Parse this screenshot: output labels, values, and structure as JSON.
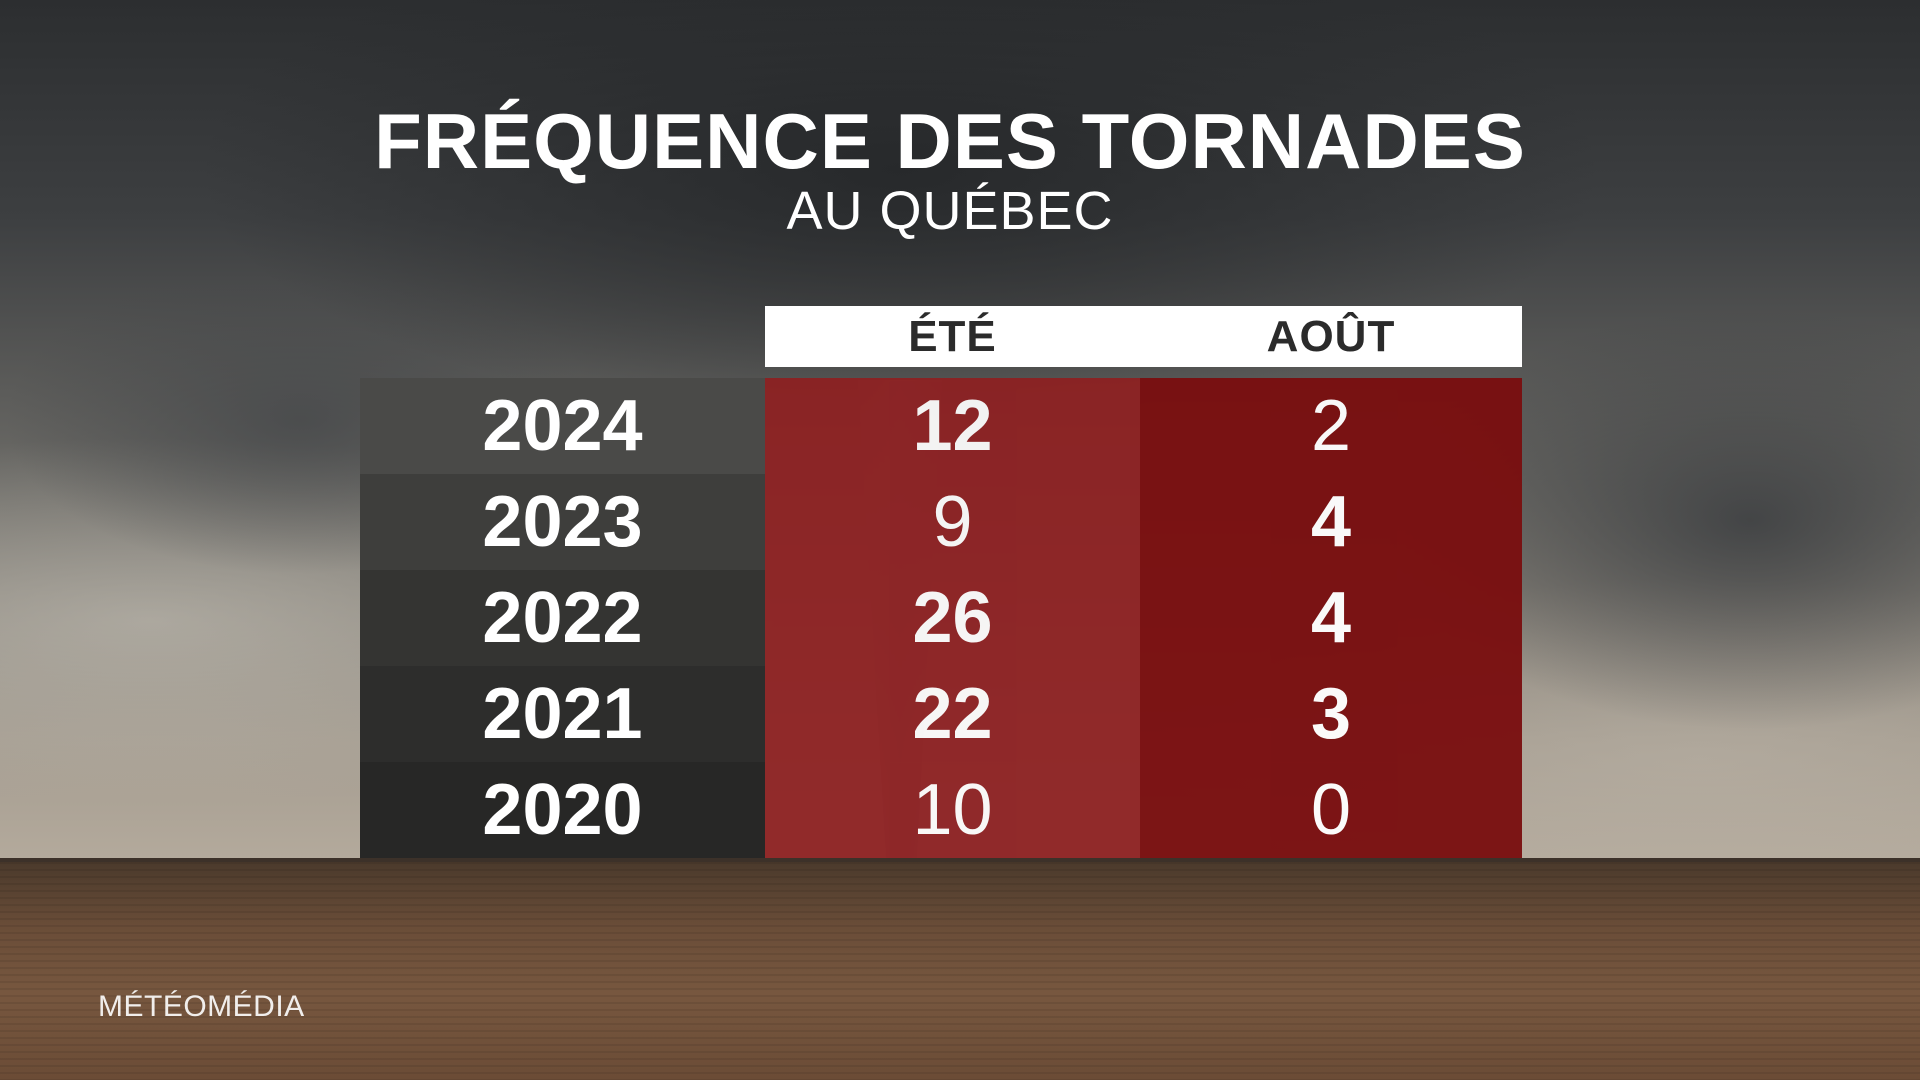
{
  "title": "FRÉQUENCE DES TORNADES",
  "subtitle": "AU QUÉBEC",
  "columns": [
    "ÉTÉ",
    "AOÛT"
  ],
  "rows": [
    {
      "year": "2024",
      "ete": "12",
      "aout": "2"
    },
    {
      "year": "2023",
      "ete": "9",
      "aout": "4"
    },
    {
      "year": "2022",
      "ete": "26",
      "aout": "4"
    },
    {
      "year": "2021",
      "ete": "22",
      "aout": "3"
    },
    {
      "year": "2020",
      "ete": "10",
      "aout": "0"
    }
  ],
  "colors": {
    "ete_column": "#8e1f21",
    "aout_column": "#7a0f10",
    "year_column": "#3a3a3a",
    "header_background": "#ffffff"
  },
  "logo": "MÉTÉOMÉDIA",
  "chart_data": {
    "type": "table",
    "title": "FRÉQUENCE DES TORNADES",
    "subtitle": "AU QUÉBEC",
    "categories": [
      "2024",
      "2023",
      "2022",
      "2021",
      "2020"
    ],
    "series": [
      {
        "name": "ÉTÉ",
        "values": [
          12,
          9,
          26,
          22,
          10
        ]
      },
      {
        "name": "AOÛT",
        "values": [
          2,
          4,
          4,
          3,
          0
        ]
      }
    ]
  }
}
